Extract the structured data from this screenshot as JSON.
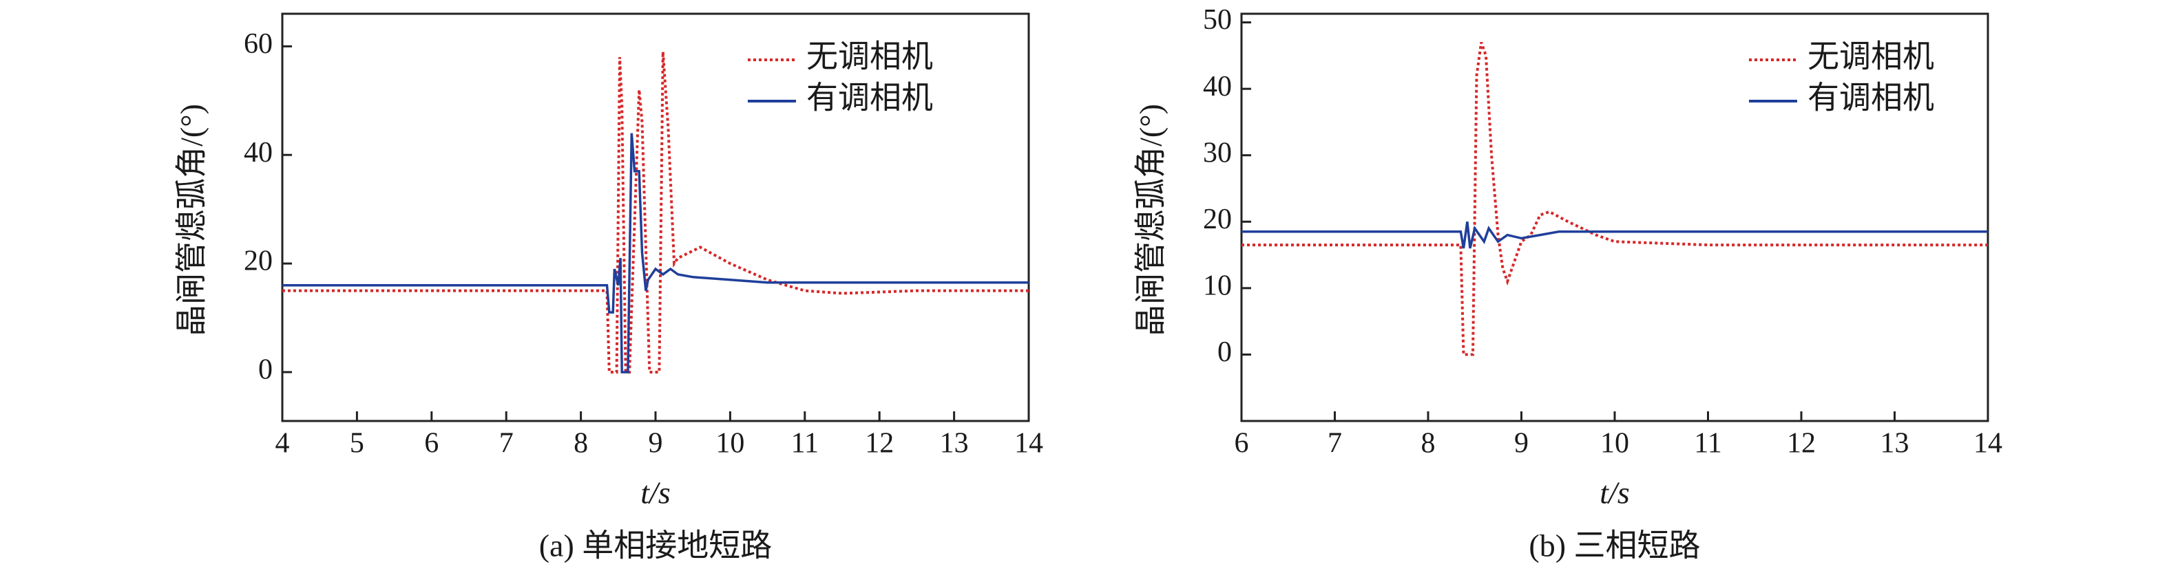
{
  "chart_data": [
    {
      "type": "line",
      "caption": "(a) 单相接地短路",
      "xlabel": "t/s",
      "ylabel": "晶闸管熄弧角/(°)",
      "xlim": [
        4,
        14
      ],
      "xticks": [
        4,
        5,
        6,
        7,
        8,
        9,
        10,
        11,
        12,
        13,
        14
      ],
      "ylim": [
        -9,
        66
      ],
      "yticks": [
        0,
        20,
        40,
        60
      ],
      "series": [
        {
          "name": "无调相机",
          "color": "#d62728",
          "dash": true,
          "x": [
            4,
            8.35,
            8.38,
            8.48,
            8.52,
            8.55,
            8.6,
            8.65,
            8.78,
            8.82,
            8.92,
            9.05,
            9.1,
            9.17,
            9.25,
            9.3,
            9.45,
            9.6,
            10,
            10.5,
            11,
            11.5,
            12.5,
            14
          ],
          "values": [
            15,
            15,
            0,
            0,
            58,
            49,
            0,
            0,
            52,
            46,
            0,
            0,
            59,
            45,
            20,
            21,
            22,
            23,
            20,
            17,
            15,
            14.5,
            15,
            15
          ]
        },
        {
          "name": "有调相机",
          "color": "#1f3f9a",
          "dash": false,
          "x": [
            4,
            8.35,
            8.38,
            8.43,
            8.45,
            8.5,
            8.53,
            8.55,
            8.63,
            8.68,
            8.72,
            8.78,
            8.82,
            8.87,
            8.9,
            9.0,
            9.1,
            9.2,
            9.3,
            9.5,
            10,
            10.5,
            14
          ],
          "values": [
            16,
            16,
            11,
            11,
            19,
            16,
            21,
            0,
            0,
            44,
            37,
            37,
            22,
            15,
            17,
            19,
            18,
            19,
            18,
            17.5,
            17,
            16.5,
            16.5
          ]
        }
      ]
    },
    {
      "type": "line",
      "caption": "(b) 三相短路",
      "xlabel": "t/s",
      "ylabel": "晶闸管熄弧角/(°)",
      "xlim": [
        6,
        14
      ],
      "xticks": [
        6,
        7,
        8,
        9,
        10,
        11,
        12,
        13,
        14
      ],
      "ylim": [
        -10,
        51.3
      ],
      "yticks": [
        0,
        10,
        20,
        30,
        40,
        50
      ],
      "series": [
        {
          "name": "无调相机",
          "color": "#d62728",
          "dash": true,
          "x": [
            6,
            8.35,
            8.38,
            8.48,
            8.52,
            8.57,
            8.62,
            8.68,
            8.75,
            8.8,
            8.85,
            8.9,
            9.0,
            9.1,
            9.2,
            9.3,
            9.5,
            9.8,
            10,
            11,
            14
          ],
          "values": [
            16.5,
            16.5,
            0,
            0,
            42,
            47,
            45,
            30,
            18,
            13,
            11,
            13,
            17,
            18,
            21,
            21.5,
            20,
            18,
            17,
            16.5,
            16.5
          ]
        },
        {
          "name": "有调相机",
          "color": "#1f3f9a",
          "dash": false,
          "x": [
            6,
            8.35,
            8.38,
            8.42,
            8.45,
            8.5,
            8.6,
            8.65,
            8.75,
            8.85,
            9.0,
            9.2,
            9.4,
            10,
            14
          ],
          "values": [
            18.5,
            18.5,
            16,
            20,
            16,
            19,
            17,
            19,
            17,
            18,
            17.5,
            18,
            18.5,
            18.5,
            18.5
          ]
        }
      ]
    }
  ]
}
